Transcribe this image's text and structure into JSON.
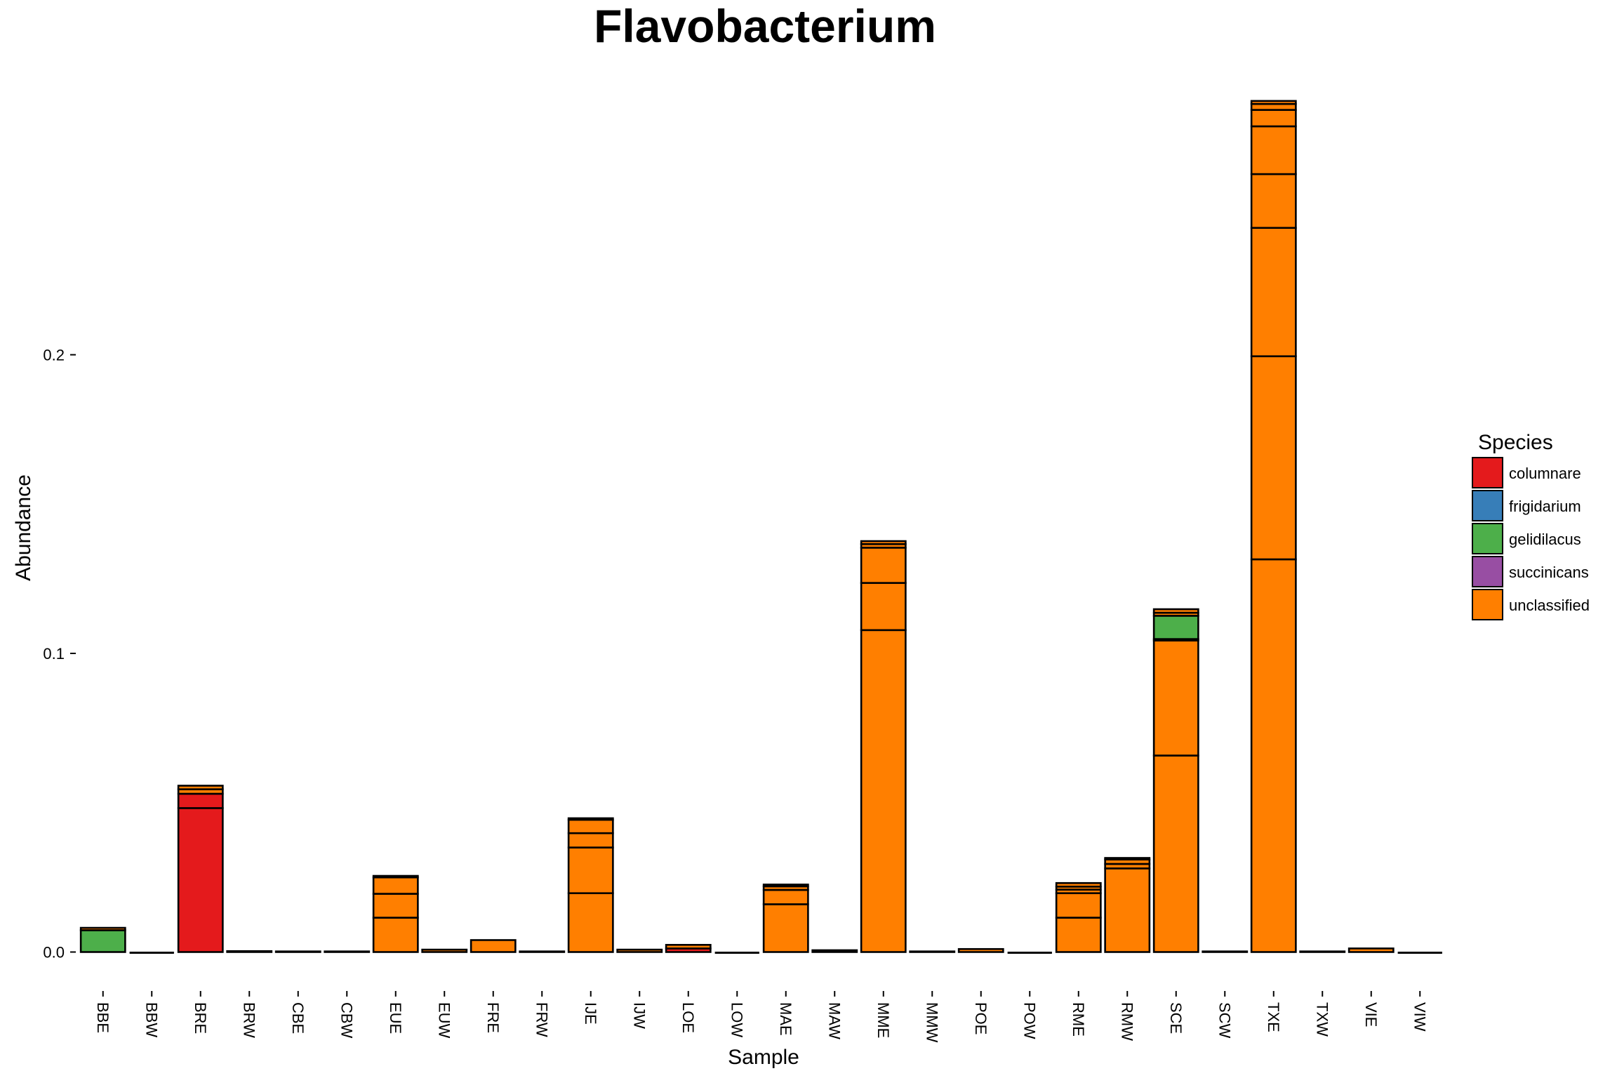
{
  "chart_data": {
    "type": "bar",
    "stacked": true,
    "title": "Flavobacterium",
    "xlabel": "Sample",
    "ylabel": "Abundance",
    "ylim": [
      -0.007,
      0.29
    ],
    "yticks": [
      0.0,
      0.1,
      0.2
    ],
    "ytick_labels": [
      "0.0",
      "0.1",
      "0.2"
    ],
    "grid": false,
    "legend_position": "right",
    "legend_title": "Species",
    "species": [
      {
        "name": "columnare",
        "color": "#E41A1C"
      },
      {
        "name": "frigidarium",
        "color": "#377EB8"
      },
      {
        "name": "gelidilacus",
        "color": "#4DAF4A"
      },
      {
        "name": "succinicans",
        "color": "#984EA3"
      },
      {
        "name": "unclassified",
        "color": "#FF7F00"
      }
    ],
    "categories": [
      "BBE",
      "BBW",
      "BRE",
      "BRW",
      "CBE",
      "CBW",
      "EUE",
      "EUW",
      "FRE",
      "FRW",
      "IJE",
      "IJW",
      "LOE",
      "LOW",
      "MAE",
      "MAW",
      "MME",
      "MMW",
      "POE",
      "POW",
      "RME",
      "RMW",
      "SCE",
      "SCW",
      "TXE",
      "TXW",
      "VIE",
      "VIW"
    ],
    "bars": [
      {
        "sample": "BBE",
        "segments": [
          {
            "species": "gelidilacus",
            "value": 0.0073
          },
          {
            "species": "unclassified",
            "value": 0.0008
          }
        ]
      },
      {
        "sample": "BBW",
        "segments": []
      },
      {
        "sample": "BRE",
        "segments": [
          {
            "species": "columnare",
            "value": 0.0482
          },
          {
            "species": "columnare",
            "value": 0.0048
          },
          {
            "species": "unclassified",
            "value": 0.0015
          },
          {
            "species": "unclassified",
            "value": 0.0012
          }
        ]
      },
      {
        "sample": "BRW",
        "segments": [
          {
            "species": "unclassified",
            "value": 0.0003
          }
        ]
      },
      {
        "sample": "CBE",
        "segments": [
          {
            "species": "unclassified",
            "value": 0.0002
          }
        ]
      },
      {
        "sample": "CBW",
        "segments": [
          {
            "species": "unclassified",
            "value": 0.0002
          }
        ]
      },
      {
        "sample": "EUE",
        "segments": [
          {
            "species": "unclassified",
            "value": 0.0115
          },
          {
            "species": "unclassified",
            "value": 0.008
          },
          {
            "species": "unclassified",
            "value": 0.0055
          },
          {
            "species": "unclassified",
            "value": 0.0005
          }
        ]
      },
      {
        "sample": "EUW",
        "segments": [
          {
            "species": "unclassified",
            "value": 0.0008
          }
        ]
      },
      {
        "sample": "FRE",
        "segments": [
          {
            "species": "unclassified",
            "value": 0.004
          }
        ]
      },
      {
        "sample": "FRW",
        "segments": [
          {
            "species": "unclassified",
            "value": 0.0002
          }
        ]
      },
      {
        "sample": "IJE",
        "segments": [
          {
            "species": "unclassified",
            "value": 0.0197
          },
          {
            "species": "unclassified",
            "value": 0.0153
          },
          {
            "species": "unclassified",
            "value": 0.0048
          },
          {
            "species": "unclassified",
            "value": 0.0045
          },
          {
            "species": "unclassified",
            "value": 0.0005
          }
        ]
      },
      {
        "sample": "IJW",
        "segments": [
          {
            "species": "unclassified",
            "value": 0.0008
          }
        ]
      },
      {
        "sample": "LOE",
        "segments": [
          {
            "species": "columnare",
            "value": 0.0012
          },
          {
            "species": "unclassified",
            "value": 0.0012
          }
        ]
      },
      {
        "sample": "LOW",
        "segments": []
      },
      {
        "sample": "MAE",
        "segments": [
          {
            "species": "unclassified",
            "value": 0.016
          },
          {
            "species": "unclassified",
            "value": 0.0048
          },
          {
            "species": "unclassified",
            "value": 0.0012
          },
          {
            "species": "unclassified",
            "value": 0.0006
          }
        ]
      },
      {
        "sample": "MAW",
        "segments": [
          {
            "species": "unclassified",
            "value": 0.0006
          }
        ]
      },
      {
        "sample": "MME",
        "segments": [
          {
            "species": "unclassified",
            "value": 0.1078
          },
          {
            "species": "unclassified",
            "value": 0.0158
          },
          {
            "species": "unclassified",
            "value": 0.0118
          },
          {
            "species": "unclassified",
            "value": 0.0012
          },
          {
            "species": "unclassified",
            "value": 0.001
          }
        ]
      },
      {
        "sample": "MMW",
        "segments": [
          {
            "species": "unclassified",
            "value": 0.0002
          }
        ]
      },
      {
        "sample": "POE",
        "segments": [
          {
            "species": "unclassified",
            "value": 0.001
          }
        ]
      },
      {
        "sample": "POW",
        "segments": []
      },
      {
        "sample": "RME",
        "segments": [
          {
            "species": "unclassified",
            "value": 0.0115
          },
          {
            "species": "unclassified",
            "value": 0.0082
          },
          {
            "species": "unclassified",
            "value": 0.0012
          },
          {
            "species": "unclassified",
            "value": 0.001
          },
          {
            "species": "unclassified",
            "value": 0.0012
          }
        ]
      },
      {
        "sample": "RMW",
        "segments": [
          {
            "species": "unclassified",
            "value": 0.028
          },
          {
            "species": "unclassified",
            "value": 0.0015
          },
          {
            "species": "unclassified",
            "value": 0.0015
          },
          {
            "species": "unclassified",
            "value": 0.0005
          }
        ]
      },
      {
        "sample": "SCE",
        "segments": [
          {
            "species": "unclassified",
            "value": 0.0658
          },
          {
            "species": "unclassified",
            "value": 0.0385
          },
          {
            "species": "unclassified",
            "value": 0.0005
          },
          {
            "species": "gelidilacus",
            "value": 0.0078
          },
          {
            "species": "unclassified",
            "value": 0.001
          },
          {
            "species": "unclassified",
            "value": 0.0012
          }
        ]
      },
      {
        "sample": "SCW",
        "segments": [
          {
            "species": "unclassified",
            "value": 0.0002
          }
        ]
      },
      {
        "sample": "TXE",
        "segments": [
          {
            "species": "unclassified",
            "value": 0.1315
          },
          {
            "species": "unclassified",
            "value": 0.068
          },
          {
            "species": "unclassified",
            "value": 0.043
          },
          {
            "species": "unclassified",
            "value": 0.018
          },
          {
            "species": "unclassified",
            "value": 0.016
          },
          {
            "species": "unclassified",
            "value": 0.0055
          },
          {
            "species": "unclassified",
            "value": 0.002
          },
          {
            "species": "unclassified",
            "value": 0.001
          }
        ]
      },
      {
        "sample": "TXW",
        "segments": [
          {
            "species": "unclassified",
            "value": 0.0002
          }
        ]
      },
      {
        "sample": "VIE",
        "segments": [
          {
            "species": "unclassified",
            "value": 0.0012
          }
        ]
      },
      {
        "sample": "VIW",
        "segments": []
      }
    ]
  }
}
